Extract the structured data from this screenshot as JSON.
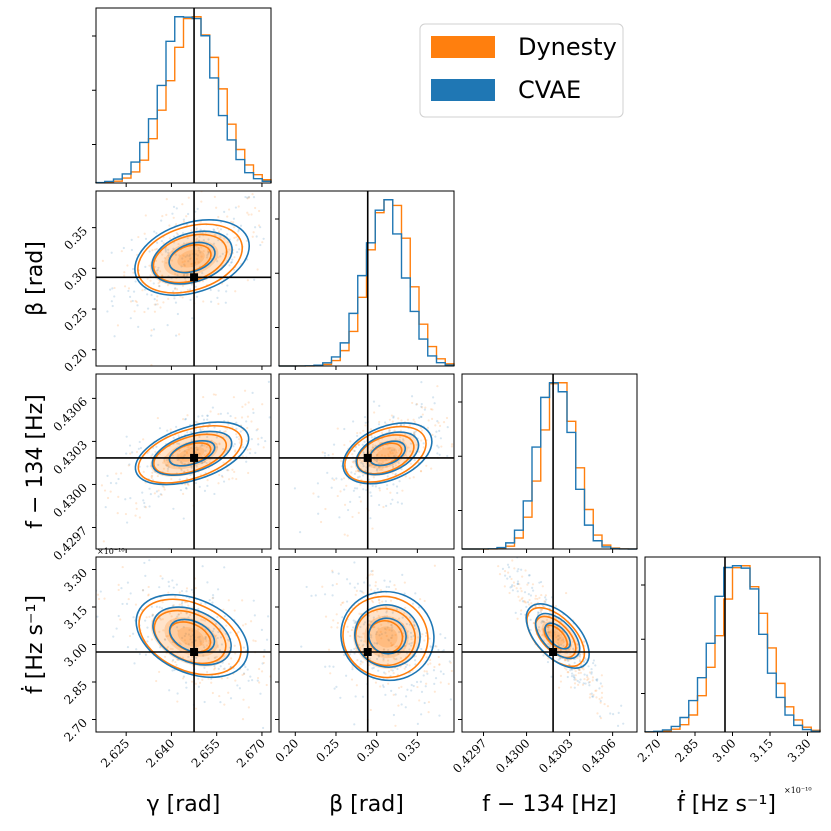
{
  "chart_data": {
    "type": "corner",
    "colors": {
      "dynesty": "#ff7f0e",
      "cvae": "#1f77b4",
      "truth": "#000000"
    },
    "legend": {
      "position": "top-right",
      "entries": [
        {
          "label": "Dynesty",
          "color": "#ff7f0e"
        },
        {
          "label": "CVAE",
          "color": "#1f77b4"
        }
      ]
    },
    "params": [
      {
        "key": "gamma",
        "label": "γ [rad]",
        "range": [
          2.615,
          2.673
        ],
        "truth": 2.6475,
        "ticks": [
          2.625,
          2.64,
          2.655,
          2.67
        ],
        "tick_labels": [
          "2.625",
          "2.640",
          "2.655",
          "2.670"
        ],
        "mean": 2.6465,
        "sd": 0.0085
      },
      {
        "key": "beta",
        "label": "β [rad]",
        "range": [
          0.18,
          0.395
        ],
        "truth": 0.289,
        "ticks": [
          0.2,
          0.25,
          0.3,
          0.35
        ],
        "tick_labels": [
          "0.20",
          "0.25",
          "0.30",
          "0.35"
        ],
        "mean": 0.312,
        "sd": 0.025
      },
      {
        "key": "f",
        "label": "f − 134 [Hz]",
        "range": [
          0.42955,
          0.43077
        ],
        "truth": 0.430185,
        "ticks": [
          0.4297,
          0.43,
          0.4303,
          0.4306
        ],
        "tick_labels": [
          "0.4297",
          "0.4300",
          "0.4303",
          "0.4306"
        ],
        "mean": 0.43021,
        "sd": 0.00012
      },
      {
        "key": "fdot",
        "label": "ḟ [Hz s⁻¹]",
        "range": [
          2.65,
          3.35
        ],
        "truth": 2.97,
        "ticks": [
          2.7,
          2.85,
          3.0,
          3.15,
          3.3
        ],
        "tick_labels": [
          "2.70",
          "2.85",
          "3.00",
          "3.15",
          "3.30"
        ],
        "mean": 3.03,
        "sd": 0.095
      }
    ],
    "correlations": [
      {
        "i": 1,
        "j": 0,
        "rho": 0.45
      },
      {
        "i": 2,
        "j": 0,
        "rho": 0.55
      },
      {
        "i": 2,
        "j": 1,
        "rho": 0.55
      },
      {
        "i": 3,
        "j": 0,
        "rho": -0.55
      },
      {
        "i": 3,
        "j": 1,
        "rho": -0.35
      },
      {
        "i": 3,
        "j": 2,
        "rho": -0.9
      }
    ],
    "scale_note": "×10⁻¹⁰"
  }
}
